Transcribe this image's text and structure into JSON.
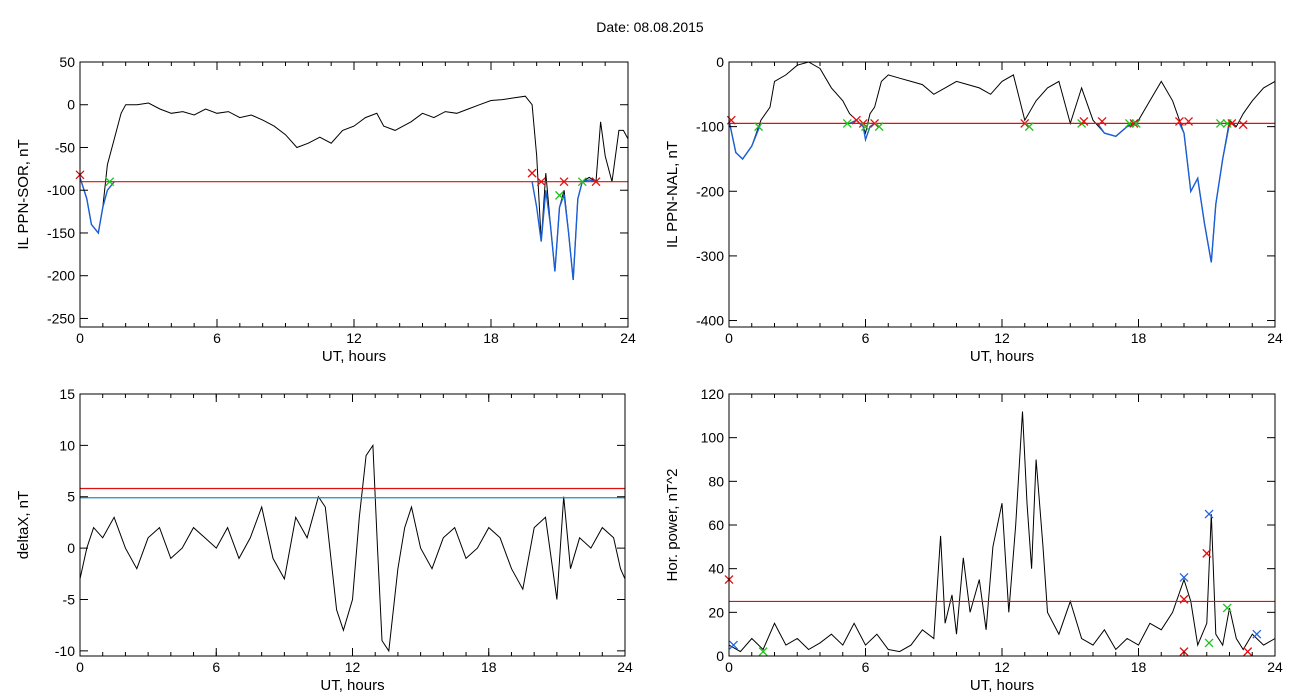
{
  "header": {
    "date_label": "Date:  08.08.2015"
  },
  "colors": {
    "trace": "#000000",
    "substorm_segment": "#1a5fd6",
    "threshold_red": "#e01010",
    "threshold_blue": "#1f8fbf",
    "marker_red": "#e01010",
    "marker_green": "#22c022",
    "marker_blue": "#2266dd"
  },
  "chart_data": [
    {
      "id": "sor",
      "type": "line",
      "ylabel": "IL PPN-SOR, nT",
      "xlabel": "UT, hours",
      "xlim": [
        0,
        24
      ],
      "ylim": [
        -260,
        50
      ],
      "xticks": [
        0,
        6,
        12,
        18,
        24
      ],
      "yticks": [
        50,
        0,
        -50,
        -100,
        -150,
        -200,
        -250
      ],
      "grid": false,
      "thresholds": [
        {
          "value": -90,
          "color": "red"
        }
      ],
      "series": [
        {
          "color": "black",
          "x": [
            0,
            0.3,
            0.5,
            0.8,
            1.0,
            1.2,
            1.5,
            1.8,
            2.0,
            2.5,
            3.0,
            3.5,
            4.0,
            4.5,
            5.0,
            5.5,
            6.0,
            6.5,
            7.0,
            7.5,
            8.0,
            8.5,
            9.0,
            9.5,
            10.0,
            10.5,
            11.0,
            11.5,
            12.0,
            12.5,
            13.0,
            13.3,
            13.8,
            14.5,
            15.0,
            15.5,
            16.0,
            16.5,
            17.0,
            17.5,
            18.0,
            18.5,
            19.0,
            19.5,
            19.8,
            20.0,
            20.2,
            20.4,
            20.6,
            20.8,
            21.0,
            21.2,
            21.4,
            21.6,
            21.8,
            22.0,
            22.3,
            22.6,
            22.8,
            23.0,
            23.3,
            23.6,
            23.8,
            24.0
          ],
          "y": [
            -85,
            -110,
            -140,
            -150,
            -120,
            -70,
            -40,
            -10,
            0,
            0,
            2,
            -5,
            -10,
            -8,
            -12,
            -5,
            -10,
            -8,
            -15,
            -12,
            -18,
            -25,
            -35,
            -50,
            -45,
            -38,
            -45,
            -30,
            -25,
            -15,
            -10,
            -25,
            -30,
            -20,
            -10,
            -15,
            -8,
            -10,
            -5,
            0,
            5,
            6,
            8,
            10,
            0,
            -60,
            -160,
            -80,
            -140,
            -195,
            -120,
            -100,
            -150,
            -205,
            -110,
            -90,
            -85,
            -90,
            -20,
            -60,
            -90,
            -30,
            -30,
            -40
          ]
        },
        {
          "color": "blue",
          "x": [
            0,
            0.3,
            0.5,
            0.8,
            1.0,
            1.2,
            1.5
          ],
          "y": [
            -85,
            -110,
            -140,
            -150,
            -120,
            -100,
            -90
          ]
        },
        {
          "color": "blue",
          "x": [
            19.8,
            20.0,
            20.2,
            20.4,
            20.6,
            20.8,
            21.0,
            21.2,
            21.4,
            21.6,
            21.8,
            22.0,
            22.3,
            22.6
          ],
          "y": [
            -90,
            -120,
            -160,
            -100,
            -140,
            -195,
            -120,
            -105,
            -150,
            -205,
            -110,
            -90,
            -88,
            -90
          ]
        }
      ],
      "markers": [
        {
          "x": 0.0,
          "y": -82,
          "color": "red"
        },
        {
          "x": 1.3,
          "y": -90,
          "color": "green"
        },
        {
          "x": 19.8,
          "y": -80,
          "color": "red"
        },
        {
          "x": 20.2,
          "y": -90,
          "color": "red"
        },
        {
          "x": 21.0,
          "y": -106,
          "color": "green"
        },
        {
          "x": 21.2,
          "y": -90,
          "color": "red"
        },
        {
          "x": 22.0,
          "y": -90,
          "color": "green"
        },
        {
          "x": 22.6,
          "y": -90,
          "color": "red"
        }
      ]
    },
    {
      "id": "nal",
      "type": "line",
      "ylabel": "IL PPN-NAL, nT",
      "xlabel": "UT, hours",
      "xlim": [
        0,
        24
      ],
      "ylim": [
        -410,
        0
      ],
      "xticks": [
        0,
        6,
        12,
        18,
        24
      ],
      "yticks": [
        0,
        -100,
        -200,
        -300,
        -400
      ],
      "grid": false,
      "thresholds": [
        {
          "value": -95,
          "color": "red"
        }
      ],
      "series": [
        {
          "color": "black",
          "x": [
            0,
            0.3,
            0.6,
            1.0,
            1.4,
            1.8,
            2.0,
            2.5,
            3.0,
            3.5,
            4.0,
            4.5,
            5.0,
            5.3,
            5.6,
            5.9,
            6.0,
            6.2,
            6.4,
            6.7,
            7.0,
            7.5,
            8.0,
            8.5,
            9.0,
            9.5,
            10.0,
            10.5,
            11.0,
            11.5,
            12.0,
            12.5,
            13.0,
            13.5,
            14.0,
            14.5,
            15.0,
            15.5,
            16.0,
            16.5,
            17.0,
            17.5,
            18.0,
            18.5,
            19.0,
            19.5,
            20.0,
            20.3,
            20.6,
            20.9,
            21.2,
            21.4,
            21.7,
            22.0,
            22.3,
            22.6,
            23.0,
            23.5,
            24.0
          ],
          "y": [
            -90,
            -140,
            -150,
            -130,
            -90,
            -70,
            -30,
            -20,
            -5,
            0,
            -10,
            -40,
            -60,
            -80,
            -90,
            -100,
            -110,
            -80,
            -70,
            -30,
            -20,
            -25,
            -30,
            -35,
            -50,
            -40,
            -30,
            -35,
            -40,
            -50,
            -30,
            -20,
            -90,
            -60,
            -40,
            -30,
            -95,
            -40,
            -90,
            -110,
            -115,
            -100,
            -90,
            -60,
            -30,
            -60,
            -110,
            -200,
            -180,
            -250,
            -310,
            -220,
            -150,
            -90,
            -100,
            -80,
            -60,
            -40,
            -30
          ]
        },
        {
          "color": "blue",
          "x": [
            0,
            0.3,
            0.6,
            1.0,
            1.4
          ],
          "y": [
            -90,
            -140,
            -150,
            -130,
            -95
          ]
        },
        {
          "color": "blue",
          "x": [
            5.3,
            5.6,
            5.9,
            6.0,
            6.2,
            6.4
          ],
          "y": [
            -95,
            -90,
            -100,
            -120,
            -100,
            -95
          ]
        },
        {
          "color": "blue",
          "x": [
            16.2,
            16.5,
            17.0,
            17.5,
            18.0
          ],
          "y": [
            -95,
            -110,
            -115,
            -100,
            -95
          ]
        },
        {
          "color": "blue",
          "x": [
            19.8,
            20.0,
            20.3,
            20.6,
            20.9,
            21.2,
            21.4,
            21.7,
            22.0
          ],
          "y": [
            -95,
            -110,
            -200,
            -180,
            -250,
            -310,
            -220,
            -150,
            -95
          ]
        }
      ],
      "markers": [
        {
          "x": 0.1,
          "y": -90,
          "color": "red"
        },
        {
          "x": 1.3,
          "y": -100,
          "color": "green"
        },
        {
          "x": 5.2,
          "y": -95,
          "color": "green"
        },
        {
          "x": 5.6,
          "y": -90,
          "color": "red"
        },
        {
          "x": 5.9,
          "y": -95,
          "color": "red"
        },
        {
          "x": 6.0,
          "y": -100,
          "color": "green"
        },
        {
          "x": 6.4,
          "y": -95,
          "color": "red"
        },
        {
          "x": 6.6,
          "y": -100,
          "color": "green"
        },
        {
          "x": 13.0,
          "y": -95,
          "color": "red"
        },
        {
          "x": 13.2,
          "y": -100,
          "color": "green"
        },
        {
          "x": 15.5,
          "y": -95,
          "color": "green"
        },
        {
          "x": 15.6,
          "y": -92,
          "color": "red"
        },
        {
          "x": 16.4,
          "y": -92,
          "color": "red"
        },
        {
          "x": 17.6,
          "y": -95,
          "color": "green"
        },
        {
          "x": 17.8,
          "y": -95,
          "color": "red"
        },
        {
          "x": 17.9,
          "y": -95,
          "color": "green"
        },
        {
          "x": 19.8,
          "y": -92,
          "color": "red"
        },
        {
          "x": 20.2,
          "y": -92,
          "color": "red"
        },
        {
          "x": 21.6,
          "y": -95,
          "color": "green"
        },
        {
          "x": 21.9,
          "y": -95,
          "color": "green"
        },
        {
          "x": 22.1,
          "y": -95,
          "color": "red"
        },
        {
          "x": 22.6,
          "y": -97,
          "color": "red"
        }
      ]
    },
    {
      "id": "deltax",
      "type": "line",
      "ylabel": "deltaX, nT",
      "xlabel": "UT, hours",
      "xlim": [
        0,
        24
      ],
      "ylim": [
        -10.5,
        15
      ],
      "xticks": [
        0,
        6,
        12,
        18,
        24
      ],
      "yticks": [
        15,
        10,
        5,
        0,
        -5,
        -10
      ],
      "grid": false,
      "thresholds": [
        {
          "value": 5.8,
          "color": "red"
        },
        {
          "value": 4.9,
          "color": "blue"
        }
      ],
      "series": [
        {
          "color": "black",
          "x": [
            0,
            0.3,
            0.6,
            1.0,
            1.5,
            2.0,
            2.5,
            3.0,
            3.5,
            4.0,
            4.5,
            5.0,
            5.5,
            6.0,
            6.5,
            7.0,
            7.5,
            8.0,
            8.5,
            9.0,
            9.5,
            10.0,
            10.5,
            10.8,
            11.0,
            11.3,
            11.6,
            12.0,
            12.3,
            12.6,
            12.9,
            13.1,
            13.3,
            13.6,
            14.0,
            14.3,
            14.6,
            15.0,
            15.5,
            16.0,
            16.5,
            17.0,
            17.5,
            18.0,
            18.5,
            19.0,
            19.5,
            20.0,
            20.5,
            21.0,
            21.3,
            21.6,
            22.0,
            22.5,
            23.0,
            23.5,
            23.8,
            24.0
          ],
          "y": [
            -3,
            0,
            2,
            1,
            3,
            0,
            -2,
            1,
            2,
            -1,
            0,
            2,
            1,
            0,
            2,
            -1,
            1,
            4,
            -1,
            -3,
            3,
            1,
            5,
            4,
            0,
            -6,
            -8,
            -5,
            3,
            9,
            10,
            0,
            -9,
            -10,
            -2,
            2,
            4,
            0,
            -2,
            1,
            2,
            -1,
            0,
            2,
            1,
            -2,
            -4,
            2,
            3,
            -5,
            5,
            -2,
            1,
            0,
            2,
            1,
            -2,
            -3
          ]
        }
      ],
      "markers": []
    },
    {
      "id": "power",
      "type": "line",
      "ylabel": "Hor. power, nT^2",
      "xlabel": "UT, hours",
      "xlim": [
        0,
        24
      ],
      "ylim": [
        0,
        120
      ],
      "xticks": [
        0,
        6,
        12,
        18,
        24
      ],
      "yticks": [
        120,
        100,
        80,
        60,
        40,
        20,
        0
      ],
      "grid": false,
      "thresholds": [
        {
          "value": 25,
          "color": "red"
        }
      ],
      "series": [
        {
          "color": "black",
          "x": [
            0,
            0.5,
            1.0,
            1.5,
            2.0,
            2.5,
            3.0,
            3.5,
            4.0,
            4.5,
            5.0,
            5.5,
            6.0,
            6.5,
            7.0,
            7.5,
            8.0,
            8.5,
            9.0,
            9.3,
            9.5,
            9.8,
            10.0,
            10.3,
            10.6,
            11.0,
            11.3,
            11.6,
            12.0,
            12.3,
            12.6,
            12.9,
            13.1,
            13.3,
            13.5,
            13.8,
            14.0,
            14.5,
            15.0,
            15.5,
            16.0,
            16.5,
            17.0,
            17.5,
            18.0,
            18.5,
            19.0,
            19.5,
            20.0,
            20.3,
            20.6,
            21.0,
            21.2,
            21.4,
            21.7,
            22.0,
            22.3,
            22.6,
            23.0,
            23.5,
            24.0
          ],
          "y": [
            5,
            2,
            8,
            3,
            15,
            5,
            8,
            3,
            6,
            10,
            5,
            15,
            5,
            10,
            3,
            2,
            5,
            12,
            8,
            55,
            15,
            28,
            10,
            45,
            20,
            35,
            12,
            50,
            70,
            20,
            60,
            112,
            70,
            40,
            90,
            50,
            20,
            10,
            25,
            8,
            5,
            12,
            3,
            8,
            5,
            15,
            12,
            20,
            35,
            25,
            5,
            15,
            65,
            10,
            5,
            22,
            8,
            3,
            10,
            5,
            8
          ]
        }
      ],
      "markers": [
        {
          "x": 0.0,
          "y": 35,
          "color": "red"
        },
        {
          "x": 0.2,
          "y": 5,
          "color": "blue"
        },
        {
          "x": 1.5,
          "y": 2,
          "color": "green"
        },
        {
          "x": 20.0,
          "y": 36,
          "color": "blue"
        },
        {
          "x": 20.0,
          "y": 26,
          "color": "red"
        },
        {
          "x": 20.0,
          "y": 2,
          "color": "red"
        },
        {
          "x": 21.0,
          "y": 47,
          "color": "red"
        },
        {
          "x": 21.1,
          "y": 65,
          "color": "blue"
        },
        {
          "x": 21.1,
          "y": 6,
          "color": "green"
        },
        {
          "x": 21.9,
          "y": 22,
          "color": "green"
        },
        {
          "x": 22.8,
          "y": 2,
          "color": "red"
        },
        {
          "x": 23.2,
          "y": 10,
          "color": "blue"
        }
      ]
    }
  ]
}
